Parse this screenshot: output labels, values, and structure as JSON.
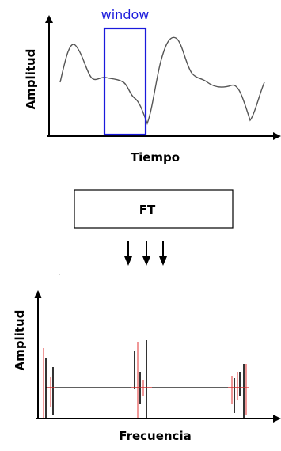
{
  "top_plot": {
    "window_label": "window",
    "y_label": "Amplitud",
    "x_label": "Tiempo",
    "window_color": "#1a1adc",
    "signal_color": "#555555"
  },
  "transform_box": {
    "label": "FT"
  },
  "arrows": {
    "count": 3
  },
  "bottom_plot": {
    "y_label": "Amplitud",
    "x_label": "Frecuencia",
    "spike_color": "#000000",
    "artifact_color": "#e03030"
  }
}
